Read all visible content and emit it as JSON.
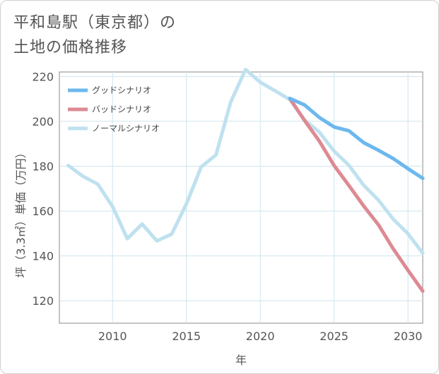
{
  "title_line1": "平和島駅（東京都）の",
  "title_line2": "土地の価格推移",
  "colors": {
    "good": "#6cb8ee",
    "bad": "#dd8a93",
    "normal": "#bfe1ef",
    "grid": "#cfe4ee",
    "axis": "#888888"
  },
  "chart_data": {
    "type": "line",
    "xlabel": "年",
    "ylabel": "坪（3.3㎡）単価（万円）",
    "xlim": [
      2006.4,
      2031
    ],
    "ylim": [
      110,
      222
    ],
    "xticks": [
      2010,
      2015,
      2020,
      2025,
      2030
    ],
    "yticks": [
      120,
      140,
      160,
      180,
      200,
      220
    ],
    "series": [
      {
        "name": "グッドシナリオ",
        "color": "#6cb8ee",
        "x": [
          2022,
          2023,
          2024,
          2025,
          2026,
          2027,
          2028,
          2029,
          2030,
          2031
        ],
        "values": [
          210.2,
          207.3,
          201.7,
          197.5,
          195.8,
          190.5,
          187.1,
          183.4,
          178.9,
          174.6
        ]
      },
      {
        "name": "バッドシナリオ",
        "color": "#dd8a93",
        "x": [
          2022,
          2023,
          2024,
          2025,
          2026,
          2027,
          2028,
          2029,
          2030,
          2031
        ],
        "values": [
          210.2,
          200.4,
          191.2,
          180.3,
          171.4,
          162.3,
          153.9,
          143.2,
          133.6,
          124.3
        ]
      },
      {
        "name": "ノーマルシナリオ",
        "color": "#bfe1ef",
        "x": [
          2007,
          2008,
          2009,
          2010,
          2011,
          2012,
          2013,
          2014,
          2015,
          2016,
          2017,
          2018,
          2019,
          2020,
          2021,
          2022,
          2023,
          2024,
          2025,
          2026,
          2027,
          2028,
          2029,
          2030,
          2031
        ],
        "values": [
          180.3,
          175.5,
          172.0,
          162.0,
          147.7,
          154.2,
          146.7,
          149.7,
          163.2,
          179.7,
          185.0,
          208.6,
          223.1,
          217.4,
          213.6,
          209.7,
          200.6,
          195.2,
          186.7,
          180.4,
          171.5,
          164.9,
          156.4,
          149.9,
          141.2
        ]
      }
    ]
  }
}
